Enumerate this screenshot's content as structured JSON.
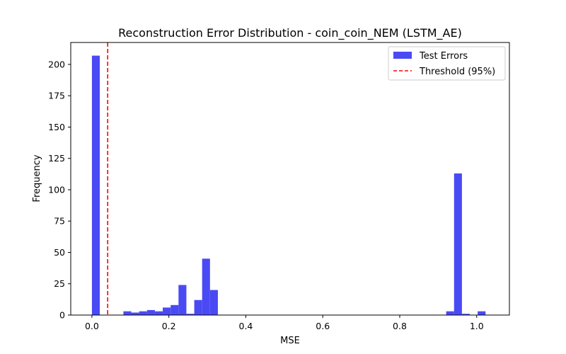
{
  "chart_data": {
    "type": "bar",
    "title": "Reconstruction Error Distribution - coin_coin_NEM (LSTM_AE)",
    "xlabel": "MSE",
    "ylabel": "Frequency",
    "xlim": [
      -0.055,
      1.085
    ],
    "ylim": [
      0,
      217.5
    ],
    "xticks": [
      0.0,
      0.2,
      0.4,
      0.6,
      0.8,
      1.0
    ],
    "xtick_labels": [
      "0.0",
      "0.2",
      "0.4",
      "0.6",
      "0.8",
      "1.0"
    ],
    "yticks": [
      0,
      25,
      50,
      75,
      100,
      125,
      150,
      175,
      200
    ],
    "ytick_labels": [
      "0",
      "25",
      "50",
      "75",
      "100",
      "125",
      "150",
      "175",
      "200"
    ],
    "grid": false,
    "legend_position": "top-right",
    "bin_width": 0.02046,
    "bin_left_edges": [
      0.0,
      0.02046,
      0.04092,
      0.06138,
      0.08184,
      0.1023,
      0.12276,
      0.14322,
      0.16368,
      0.18414,
      0.2046,
      0.22506,
      0.24552,
      0.26598,
      0.28644,
      0.3069,
      0.32736,
      0.34782,
      0.36828,
      0.38874,
      0.4092,
      0.42966,
      0.45012,
      0.47058,
      0.49104,
      0.5115,
      0.53196,
      0.55242,
      0.57288,
      0.59334,
      0.6138,
      0.63426,
      0.65472,
      0.67518,
      0.69564,
      0.7161,
      0.73656,
      0.75702,
      0.77748,
      0.79794,
      0.8184,
      0.83886,
      0.85932,
      0.87978,
      0.90024,
      0.9207,
      0.94116,
      0.96162,
      0.98208,
      1.00254
    ],
    "counts": [
      207,
      0,
      0,
      0,
      3,
      2,
      3,
      4,
      3,
      6,
      8,
      24,
      1,
      12,
      45,
      20,
      0,
      0,
      0,
      0,
      0,
      0,
      0,
      0,
      0,
      0,
      0,
      0,
      0,
      0,
      0,
      0,
      0,
      0,
      0,
      0,
      0,
      0,
      0,
      0,
      0,
      0,
      0,
      0,
      0,
      3,
      113,
      1,
      0,
      3
    ],
    "threshold": {
      "name": "Threshold (95%)",
      "x": 0.041,
      "color": "#ff0000",
      "style": "dashed"
    },
    "series": [
      {
        "name": "Test Errors",
        "color": "#4a4af4"
      }
    ]
  }
}
